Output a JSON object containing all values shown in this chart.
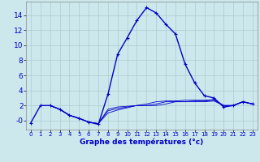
{
  "title": "",
  "xlabel": "Graphe des températures (°c)",
  "ylabel": "",
  "background_color": "#cce8ed",
  "grid_color": "#aacccc",
  "line_color": "#0000cc",
  "x_ticks": [
    0,
    1,
    2,
    3,
    4,
    5,
    6,
    7,
    8,
    9,
    10,
    11,
    12,
    13,
    14,
    15,
    16,
    17,
    18,
    19,
    20,
    21,
    22,
    23
  ],
  "y_ticks": [
    0,
    2,
    4,
    6,
    8,
    10,
    12,
    14
  ],
  "ylim": [
    -1.2,
    15.8
  ],
  "xlim": [
    -0.5,
    23.5
  ],
  "main_series_x": [
    0,
    1,
    2,
    3,
    4,
    5,
    6,
    7,
    8,
    9,
    10,
    11,
    12,
    13,
    14,
    15,
    16,
    17,
    18,
    19,
    20,
    21,
    22,
    23
  ],
  "main_series_y": [
    -0.3,
    2.0,
    2.0,
    1.5,
    0.7,
    0.3,
    -0.2,
    -0.5,
    3.5,
    8.8,
    11.0,
    13.3,
    15.0,
    14.3,
    12.8,
    11.5,
    7.5,
    5.0,
    3.3,
    3.0,
    1.8,
    2.0,
    2.5,
    2.2
  ],
  "flat_series": [
    {
      "x": [
        2,
        3,
        4,
        5,
        6,
        7,
        8,
        9,
        10,
        11,
        12,
        13,
        14,
        15,
        16,
        17,
        18,
        19,
        20,
        21,
        22,
        23
      ],
      "y": [
        2.0,
        1.5,
        0.7,
        0.3,
        -0.2,
        -0.4,
        1.5,
        1.8,
        1.9,
        2.0,
        2.2,
        2.5,
        2.6,
        2.6,
        2.7,
        2.7,
        2.7,
        2.8,
        2.0,
        2.0,
        2.5,
        2.2
      ]
    },
    {
      "x": [
        2,
        3,
        4,
        5,
        6,
        7,
        8,
        9,
        10,
        11,
        12,
        13,
        14,
        15,
        16,
        17,
        18,
        19,
        20,
        21,
        22,
        23
      ],
      "y": [
        2.0,
        1.5,
        0.7,
        0.3,
        -0.2,
        -0.4,
        1.3,
        1.6,
        1.8,
        2.0,
        2.0,
        2.2,
        2.5,
        2.5,
        2.5,
        2.6,
        2.6,
        2.7,
        2.0,
        2.0,
        2.5,
        2.2
      ]
    },
    {
      "x": [
        2,
        3,
        4,
        5,
        6,
        7,
        8,
        9,
        10,
        11,
        12,
        13,
        14,
        15,
        16,
        17,
        18,
        19,
        20,
        21,
        22,
        23
      ],
      "y": [
        2.0,
        1.5,
        0.7,
        0.3,
        -0.2,
        -0.4,
        1.0,
        1.4,
        1.7,
        2.0,
        2.0,
        2.0,
        2.2,
        2.5,
        2.5,
        2.5,
        2.5,
        2.6,
        2.0,
        2.0,
        2.5,
        2.2
      ]
    }
  ]
}
